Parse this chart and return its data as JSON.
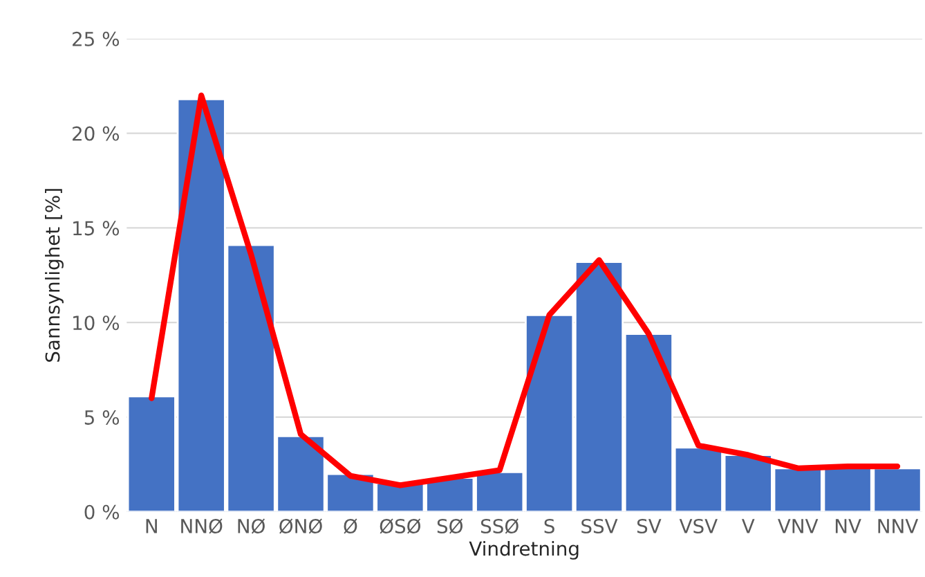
{
  "chart_data": {
    "type": "bar",
    "xlabel": "Vindretning",
    "ylabel": "Sannsynlighet [%]",
    "categories": [
      "N",
      "NNØ",
      "NØ",
      "ØNØ",
      "Ø",
      "ØSØ",
      "SØ",
      "SSØ",
      "S",
      "SSV",
      "SV",
      "VSV",
      "V",
      "VNV",
      "NV",
      "NNV"
    ],
    "series": [
      {
        "color": "#4472c4",
        "values": [
          6.1,
          21.8,
          14.1,
          4.0,
          2.0,
          1.5,
          1.8,
          2.1,
          10.4,
          13.2,
          9.4,
          3.4,
          3.0,
          2.3,
          2.4,
          2.3
        ]
      },
      {
        "type": "line",
        "color": "#ff0000",
        "values": [
          6.0,
          22.0,
          13.6,
          4.1,
          1.9,
          1.4,
          1.8,
          2.2,
          10.4,
          13.3,
          9.4,
          3.5,
          3.0,
          2.3,
          2.4,
          2.4
        ]
      }
    ],
    "ylim": [
      0,
      25
    ],
    "yticks": [
      {
        "value": 0,
        "label": "0 %"
      },
      {
        "value": 5,
        "label": "5 %"
      },
      {
        "value": 10,
        "label": "10 %"
      },
      {
        "value": 15,
        "label": "15 %"
      },
      {
        "value": 20,
        "label": "20 %"
      },
      {
        "value": 25,
        "label": "25 %"
      }
    ],
    "grid": "y",
    "legend": false,
    "marker": "none",
    "line_style": "solid"
  }
}
